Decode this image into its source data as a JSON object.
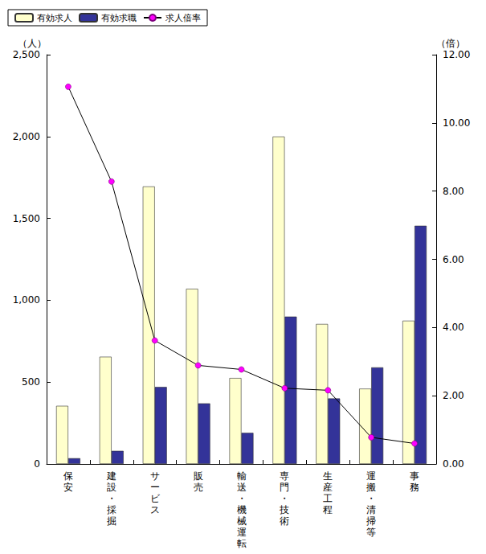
{
  "chart_data": {
    "type": "bar",
    "categories": [
      "保安",
      "建設・採掘",
      "サービス",
      "販売",
      "輸送・機械運転",
      "専門・技術",
      "生産工程",
      "運搬・清掃等",
      "事務"
    ],
    "series": [
      {
        "name": "有効求人",
        "type": "bar",
        "color": "#ffffcc",
        "values": [
          355,
          655,
          1695,
          1070,
          525,
          2000,
          855,
          460,
          875
        ]
      },
      {
        "name": "有効求職",
        "type": "bar",
        "color": "#333399",
        "values": [
          35,
          80,
          470,
          370,
          190,
          900,
          400,
          590,
          1455
        ]
      },
      {
        "name": "求人倍率",
        "type": "line",
        "axis": "y2",
        "color": "#ff00ff",
        "marker": "circle",
        "line_style": "solid",
        "values": [
          11.06,
          8.28,
          3.62,
          2.89,
          2.77,
          2.22,
          2.16,
          0.78,
          0.6
        ]
      }
    ],
    "ylabel": "（人）",
    "y2label": "（倍）",
    "ylim": [
      0,
      2500
    ],
    "yticks": [
      0,
      500,
      {
        "value": 1000,
        "label": "1,000"
      },
      {
        "value": 1500,
        "label": "1,500"
      },
      {
        "value": 2000,
        "label": "2,000"
      },
      {
        "value": 2500,
        "label": "2,500"
      }
    ],
    "y2lim": [
      0,
      12
    ],
    "y2ticks": [
      {
        "value": 0,
        "label": "0.00"
      },
      {
        "value": 2,
        "label": "2.00"
      },
      {
        "value": 4,
        "label": "4.00"
      },
      {
        "value": 6,
        "label": "6.00"
      },
      {
        "value": 8,
        "label": "8.00"
      },
      {
        "value": 10,
        "label": "10.00"
      },
      {
        "value": 12,
        "label": "12.00"
      }
    ],
    "grid": false,
    "legend": "top-left"
  }
}
